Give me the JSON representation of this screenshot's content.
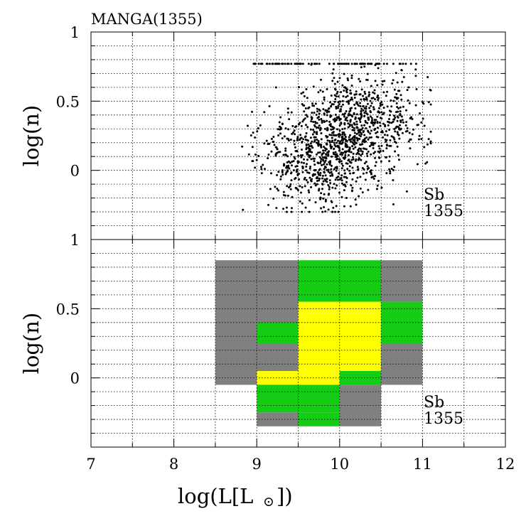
{
  "chart_data": [
    {
      "type": "scatter",
      "panel": "top",
      "title": "MANGA(1355)",
      "xlabel_text": "log(L[L",
      "xlabel_close": "])",
      "ylabel": "log(n)",
      "xlim": [
        7,
        12
      ],
      "ylim": [
        -0.5,
        1
      ],
      "x_ticks": [
        7,
        8,
        9,
        10,
        11,
        12
      ],
      "y_tick_labels": [
        {
          "value": 1,
          "label": "1"
        },
        {
          "value": 0.5,
          "label": "0.5"
        },
        {
          "value": 0,
          "label": "0"
        }
      ],
      "annotation": {
        "line1": "Sb",
        "line2": "1355"
      },
      "grid": true,
      "point_count": 1355,
      "distribution": {
        "x_range": [
          8.7,
          11.1
        ],
        "y_range": [
          -0.3,
          0.77
        ],
        "cluster_centers": [
          {
            "x": 9.75,
            "y": 0.05,
            "weight": 0.45
          },
          {
            "x": 10.2,
            "y": 0.35,
            "weight": 0.55
          }
        ],
        "ceiling_y": 0.77,
        "ceiling_x_range": [
          8.95,
          10.95
        ]
      }
    },
    {
      "type": "heatmap",
      "panel": "bottom",
      "ylabel": "log(n)",
      "xlim": [
        7,
        12
      ],
      "ylim": [
        -0.5,
        1
      ],
      "x_ticks": [
        7,
        8,
        9,
        10,
        11,
        12
      ],
      "y_tick_labels": [
        {
          "value": 1,
          "label": "1"
        },
        {
          "value": 0.5,
          "label": "0.5"
        },
        {
          "value": 0,
          "label": "0"
        }
      ],
      "annotation": {
        "line1": "Sb",
        "line2": "1355"
      },
      "grid": true,
      "colors": {
        "gray": "#808080",
        "green": "#14cc14",
        "yellow": "#ffff00"
      },
      "cells": [
        {
          "x0": 8.5,
          "x1": 9.5,
          "y0": -0.05,
          "y1": 0.85,
          "color": "gray"
        },
        {
          "x0": 9.5,
          "x1": 10.5,
          "y0": 0.55,
          "y1": 0.85,
          "color": "green"
        },
        {
          "x0": 10.5,
          "x1": 11.0,
          "y0": 0.55,
          "y1": 0.85,
          "color": "gray"
        },
        {
          "x0": 9.5,
          "x1": 10.5,
          "y0": 0.05,
          "y1": 0.55,
          "color": "yellow"
        },
        {
          "x0": 9.0,
          "x1": 9.5,
          "y0": 0.25,
          "y1": 0.4,
          "color": "green"
        },
        {
          "x0": 9.0,
          "x1": 9.5,
          "y0": -0.05,
          "y1": 0.05,
          "color": "yellow"
        },
        {
          "x0": 9.5,
          "x1": 10.0,
          "y0": -0.05,
          "y1": 0.05,
          "color": "yellow"
        },
        {
          "x0": 10.0,
          "x1": 10.5,
          "y0": -0.05,
          "y1": 0.05,
          "color": "green"
        },
        {
          "x0": 10.5,
          "x1": 11.0,
          "y0": 0.25,
          "y1": 0.55,
          "color": "green"
        },
        {
          "x0": 10.5,
          "x1": 11.0,
          "y0": -0.05,
          "y1": 0.25,
          "color": "gray"
        },
        {
          "x0": 9.0,
          "x1": 10.0,
          "y0": -0.25,
          "y1": -0.05,
          "color": "green"
        },
        {
          "x0": 9.0,
          "x1": 9.5,
          "y0": -0.35,
          "y1": -0.25,
          "color": "gray"
        },
        {
          "x0": 9.5,
          "x1": 10.0,
          "y0": -0.35,
          "y1": -0.25,
          "color": "green"
        },
        {
          "x0": 10.0,
          "x1": 10.5,
          "y0": -0.35,
          "y1": -0.05,
          "color": "gray"
        }
      ]
    }
  ]
}
